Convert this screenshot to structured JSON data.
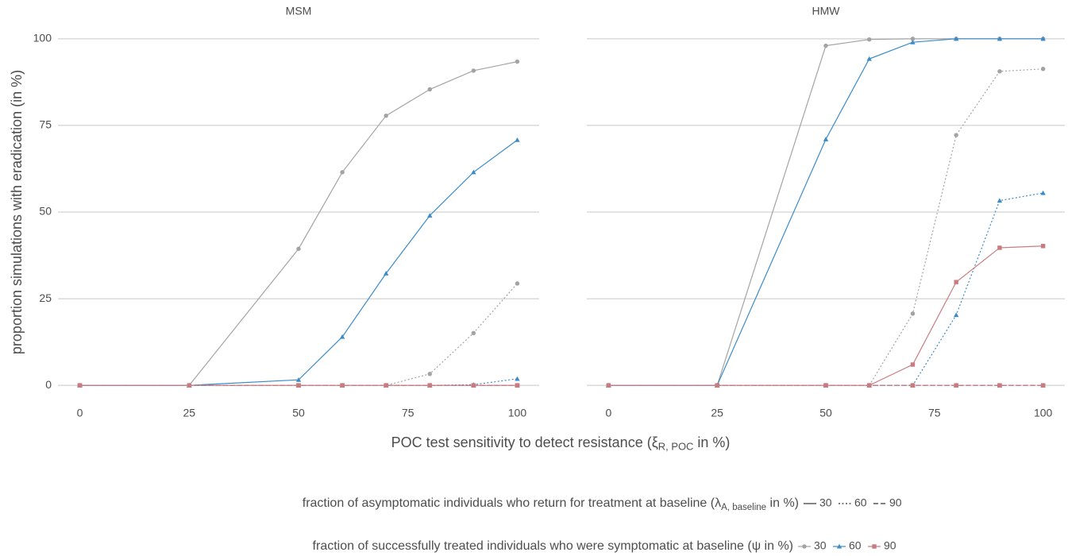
{
  "chart_data": [
    {
      "type": "line",
      "title": "MSM",
      "x": [
        0,
        25,
        50,
        60,
        70,
        80,
        90,
        100
      ],
      "xlim": [
        -5,
        105
      ],
      "xticks": [
        0,
        25,
        50,
        75,
        100
      ],
      "ylim": [
        -5,
        105
      ],
      "yticks": [
        0,
        25,
        50,
        75,
        100
      ],
      "grid": true,
      "series": [
        {
          "linetype": "dashed",
          "color": "#a3a3a3",
          "marker": "circle",
          "values": [
            0,
            0,
            0,
            0,
            0,
            0,
            0,
            0
          ]
        },
        {
          "linetype": "dashed",
          "color": "#3b8bc9",
          "marker": "triangle",
          "values": [
            0,
            0,
            0,
            0,
            0,
            0,
            0,
            0
          ]
        },
        {
          "linetype": "dashed",
          "color": "#c97c80",
          "marker": "square",
          "values": [
            0,
            0,
            0,
            0,
            0,
            0,
            0,
            0
          ]
        },
        {
          "linetype": "dotted",
          "color": "#a3a3a3",
          "marker": "circle",
          "values": [
            0,
            0,
            0,
            0,
            0,
            3.3,
            15.1,
            29.4
          ]
        },
        {
          "linetype": "dotted",
          "color": "#3b8bc9",
          "marker": "triangle",
          "values": [
            0,
            0,
            0,
            0,
            0,
            0,
            0.2,
            1.9
          ]
        },
        {
          "linetype": "dotted",
          "color": "#c97c80",
          "marker": "square",
          "values": [
            0,
            0,
            0,
            0,
            0,
            0,
            0,
            0
          ]
        },
        {
          "linetype": "solid",
          "color": "#a3a3a3",
          "marker": "circle",
          "values": [
            0,
            0,
            39.4,
            61.5,
            77.8,
            85.4,
            90.8,
            93.4
          ]
        },
        {
          "linetype": "solid",
          "color": "#3b8bc9",
          "marker": "triangle",
          "values": [
            0,
            0,
            1.6,
            14,
            32.3,
            49,
            61.5,
            70.8
          ]
        },
        {
          "linetype": "solid",
          "color": "#c97c80",
          "marker": "square",
          "values": [
            0,
            0,
            0,
            0,
            0,
            0,
            0,
            0
          ]
        }
      ]
    },
    {
      "type": "line",
      "title": "HMW",
      "x": [
        0,
        25,
        50,
        60,
        70,
        80,
        90,
        100
      ],
      "xlim": [
        -5,
        105
      ],
      "xticks": [
        0,
        25,
        50,
        75,
        100
      ],
      "ylim": [
        -5,
        105
      ],
      "yticks": [
        0,
        25,
        50,
        75,
        100
      ],
      "grid": true,
      "series": [
        {
          "linetype": "dashed",
          "color": "#a3a3a3",
          "marker": "circle",
          "values": [
            0,
            0,
            0,
            0,
            0,
            0,
            0,
            0
          ]
        },
        {
          "linetype": "dashed",
          "color": "#3b8bc9",
          "marker": "triangle",
          "values": [
            0,
            0,
            0,
            0,
            0,
            0,
            0,
            0
          ]
        },
        {
          "linetype": "dashed",
          "color": "#c97c80",
          "marker": "square",
          "values": [
            0,
            0,
            0,
            0,
            0,
            0,
            0,
            0
          ]
        },
        {
          "linetype": "dotted",
          "color": "#a3a3a3",
          "marker": "circle",
          "values": [
            0,
            0,
            0,
            0,
            20.7,
            72.2,
            90.6,
            91.3
          ]
        },
        {
          "linetype": "dotted",
          "color": "#3b8bc9",
          "marker": "triangle",
          "values": [
            0,
            0,
            0,
            0,
            0,
            20.3,
            53.3,
            55.5
          ]
        },
        {
          "linetype": "dotted",
          "color": "#c97c80",
          "marker": "square",
          "values": [
            0,
            0,
            0,
            0,
            0,
            0,
            0,
            0
          ]
        },
        {
          "linetype": "solid",
          "color": "#a3a3a3",
          "marker": "circle",
          "values": [
            0,
            0,
            98,
            99.8,
            100,
            100,
            100,
            100
          ]
        },
        {
          "linetype": "solid",
          "color": "#3b8bc9",
          "marker": "triangle",
          "values": [
            0,
            0,
            71,
            94.2,
            99,
            100,
            100,
            100
          ]
        },
        {
          "linetype": "solid",
          "color": "#c97c80",
          "marker": "square",
          "values": [
            0,
            0,
            0,
            0,
            6,
            29.8,
            39.7,
            40.2
          ]
        }
      ]
    }
  ],
  "y_label": "proportion simulations with eradication (in %)",
  "x_label": {
    "before": "POC test sensitivity to detect resistance (ξ",
    "sub": "R, POC",
    "after": " in %)"
  },
  "legends": [
    {
      "title": {
        "before": "fraction of asymptomatic individuals who return for treatment at baseline (λ",
        "sub": "A, baseline",
        "after": " in %)"
      },
      "entries": [
        {
          "label": "30",
          "linetype": "solid",
          "color": "#333333"
        },
        {
          "label": "60",
          "linetype": "dotted",
          "color": "#333333"
        },
        {
          "label": "90",
          "linetype": "dashed",
          "color": "#333333"
        }
      ]
    },
    {
      "title": {
        "before": "fraction of successfully treated individuals who were symptomatic at baseline (ψ in %)",
        "sub": null,
        "after": null
      },
      "entries": [
        {
          "label": "30",
          "linetype": "solid",
          "color": "#a3a3a3",
          "marker": "circle"
        },
        {
          "label": "60",
          "linetype": "solid",
          "color": "#3b8bc9",
          "marker": "triangle"
        },
        {
          "label": "90",
          "linetype": "solid",
          "color": "#c97c80",
          "marker": "square"
        }
      ]
    }
  ]
}
